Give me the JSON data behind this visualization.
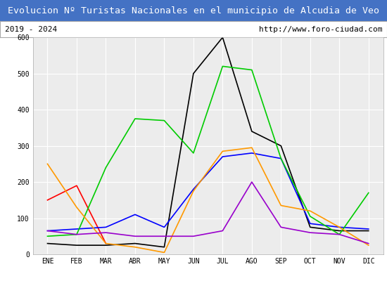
{
  "title": "Evolucion Nº Turistas Nacionales en el municipio de Alcudia de Veo",
  "subtitle_left": "2019 - 2024",
  "subtitle_right": "http://www.foro-ciudad.com",
  "months": [
    "ENE",
    "FEB",
    "MAR",
    "ABR",
    "MAY",
    "JUN",
    "JUL",
    "AGO",
    "SEP",
    "OCT",
    "NOV",
    "DIC"
  ],
  "ylim": [
    0,
    600
  ],
  "yticks": [
    0,
    100,
    200,
    300,
    400,
    500,
    600
  ],
  "series": {
    "2024": {
      "color": "#ff0000",
      "values": [
        150,
        190,
        30,
        null,
        null,
        null,
        null,
        null,
        null,
        null,
        null,
        null
      ]
    },
    "2023": {
      "color": "#000000",
      "values": [
        30,
        25,
        25,
        30,
        20,
        500,
        600,
        340,
        300,
        75,
        65,
        65
      ]
    },
    "2022": {
      "color": "#0000ff",
      "values": [
        65,
        70,
        75,
        110,
        75,
        180,
        270,
        280,
        265,
        85,
        75,
        70
      ]
    },
    "2021": {
      "color": "#00cc00",
      "values": [
        50,
        55,
        240,
        375,
        370,
        280,
        520,
        510,
        265,
        105,
        55,
        170
      ]
    },
    "2020": {
      "color": "#ff9900",
      "values": [
        250,
        130,
        30,
        20,
        5,
        175,
        285,
        295,
        135,
        120,
        75,
        25
      ]
    },
    "2019": {
      "color": "#9900cc",
      "values": [
        65,
        55,
        60,
        50,
        50,
        50,
        65,
        200,
        75,
        60,
        55,
        30
      ]
    }
  },
  "title_bg_color": "#4472c4",
  "title_text_color": "#ffffff",
  "plot_bg_color": "#ececec",
  "grid_color": "#ffffff",
  "title_fontsize": 9.5,
  "subtitle_fontsize": 8.0,
  "tick_fontsize": 7.0,
  "legend_fontsize": 7.5
}
